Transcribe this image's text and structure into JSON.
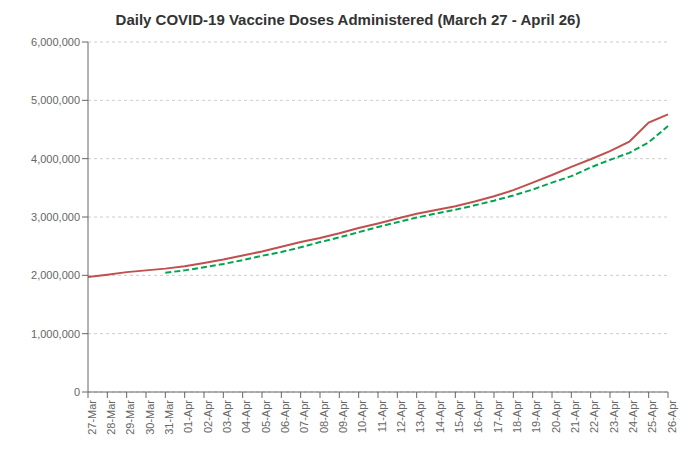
{
  "chart_data": {
    "type": "line",
    "title": "Daily COVID-19 Vaccine Doses Administered (March 27 - April 26)",
    "categories": [
      "27-Mar",
      "28-Mar",
      "29-Mar",
      "30-Mar",
      "31-Mar",
      "01-Apr",
      "02-Apr",
      "03-Apr",
      "04-Apr",
      "05-Apr",
      "06-Apr",
      "07-Apr",
      "08-Apr",
      "09-Apr",
      "10-Apr",
      "11-Apr",
      "12-Apr",
      "13-Apr",
      "14-Apr",
      "15-Apr",
      "16-Apr",
      "17-Apr",
      "18-Apr",
      "19-Apr",
      "20-Apr",
      "21-Apr",
      "22-Apr",
      "23-Apr",
      "24-Apr",
      "25-Apr",
      "26-Apr"
    ],
    "series": [
      {
        "color": "#c0504d",
        "line_style": "solid",
        "values": [
          1970000,
          2010000,
          2055000,
          2085000,
          2115000,
          2155000,
          2210000,
          2270000,
          2340000,
          2410000,
          2490000,
          2570000,
          2640000,
          2720000,
          2810000,
          2890000,
          2975000,
          3055000,
          3120000,
          3185000,
          3265000,
          3355000,
          3460000,
          3590000,
          3720000,
          3860000,
          3990000,
          4130000,
          4290000,
          4620000,
          4760000
        ]
      },
      {
        "color": "#00a550",
        "line_style": "dashed",
        "values": [
          null,
          null,
          null,
          null,
          2045000,
          2085000,
          2140000,
          2195000,
          2260000,
          2335000,
          2400000,
          2480000,
          2570000,
          2650000,
          2740000,
          2830000,
          2910000,
          2990000,
          3060000,
          3125000,
          3200000,
          3280000,
          3370000,
          3470000,
          3590000,
          3700000,
          3850000,
          3980000,
          4100000,
          4280000,
          4560000
        ]
      }
    ],
    "ylim": [
      0,
      6000000
    ],
    "yticks": [
      0,
      {
        "value": 1000000,
        "label": "1,000,000"
      },
      {
        "value": 2000000,
        "label": "2,000,000"
      },
      {
        "value": 3000000,
        "label": "3,000,000"
      },
      {
        "value": 4000000,
        "label": "4,000,000"
      },
      {
        "value": 5000000,
        "label": "5,000,000"
      },
      {
        "value": 6000000,
        "label": "6,000,000"
      }
    ],
    "grid": true
  }
}
